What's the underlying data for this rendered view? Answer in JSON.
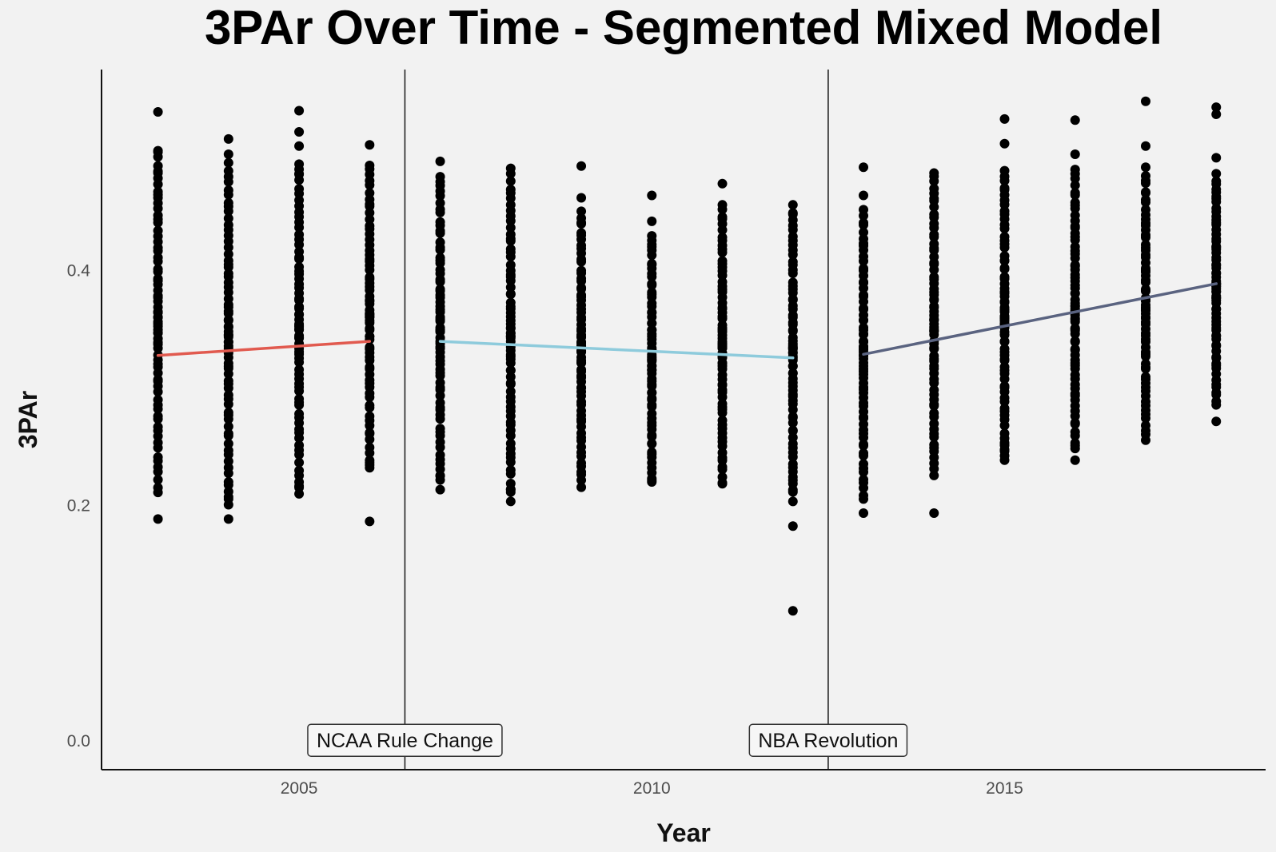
{
  "chart_data": {
    "type": "scatter",
    "title": "3PAr Over Time - Segmented Mixed Model",
    "xlabel": "Year",
    "ylabel": "3PAr",
    "xlim": [
      2002.2,
      2018.7
    ],
    "ylim": [
      -0.025,
      0.57
    ],
    "x_ticks": [
      2005,
      2010,
      2015
    ],
    "x_tick_labels": [
      "2005",
      "2010",
      "2015"
    ],
    "y_ticks": [
      0.0,
      0.2,
      0.4
    ],
    "y_tick_labels": [
      "0.0",
      "0.2",
      "0.4"
    ],
    "grid": false,
    "legend": "none",
    "breakpoints": [
      {
        "x": 2006.5,
        "label": "NCAA Rule Change"
      },
      {
        "x": 2012.5,
        "label": "NBA Revolution"
      }
    ],
    "point_color": "#000000",
    "year_ranges": [
      {
        "year": 2003,
        "min": 0.21,
        "max": 0.5
      },
      {
        "year": 2004,
        "min": 0.2,
        "max": 0.49
      },
      {
        "year": 2005,
        "min": 0.21,
        "max": 0.49
      },
      {
        "year": 2006,
        "min": 0.23,
        "max": 0.49
      },
      {
        "year": 2007,
        "min": 0.22,
        "max": 0.48
      },
      {
        "year": 2008,
        "min": 0.21,
        "max": 0.48
      },
      {
        "year": 2009,
        "min": 0.22,
        "max": 0.45
      },
      {
        "year": 2010,
        "min": 0.22,
        "max": 0.43
      },
      {
        "year": 2011,
        "min": 0.22,
        "max": 0.45
      },
      {
        "year": 2012,
        "min": 0.21,
        "max": 0.45
      },
      {
        "year": 2013,
        "min": 0.21,
        "max": 0.45
      },
      {
        "year": 2014,
        "min": 0.23,
        "max": 0.48
      },
      {
        "year": 2015,
        "min": 0.24,
        "max": 0.48
      },
      {
        "year": 2016,
        "min": 0.25,
        "max": 0.48
      },
      {
        "year": 2017,
        "min": 0.26,
        "max": 0.48
      },
      {
        "year": 2018,
        "min": 0.29,
        "max": 0.48
      }
    ],
    "outliers": [
      {
        "x": 2003,
        "y": 0.188
      },
      {
        "x": 2003,
        "y": 0.534
      },
      {
        "x": 2003,
        "y": 0.501
      },
      {
        "x": 2003,
        "y": 0.482
      },
      {
        "x": 2003,
        "y": 0.461
      },
      {
        "x": 2004,
        "y": 0.188
      },
      {
        "x": 2004,
        "y": 0.205
      },
      {
        "x": 2004,
        "y": 0.511
      },
      {
        "x": 2004,
        "y": 0.498
      },
      {
        "x": 2005,
        "y": 0.535
      },
      {
        "x": 2005,
        "y": 0.517
      },
      {
        "x": 2005,
        "y": 0.505
      },
      {
        "x": 2005,
        "y": 0.481
      },
      {
        "x": 2005,
        "y": 0.216
      },
      {
        "x": 2006,
        "y": 0.186
      },
      {
        "x": 2006,
        "y": 0.506
      },
      {
        "x": 2006,
        "y": 0.236
      },
      {
        "x": 2007,
        "y": 0.213
      },
      {
        "x": 2007,
        "y": 0.225
      },
      {
        "x": 2007,
        "y": 0.492
      },
      {
        "x": 2008,
        "y": 0.203
      },
      {
        "x": 2008,
        "y": 0.213
      },
      {
        "x": 2008,
        "y": 0.486
      },
      {
        "x": 2009,
        "y": 0.215
      },
      {
        "x": 2009,
        "y": 0.488
      },
      {
        "x": 2009,
        "y": 0.461
      },
      {
        "x": 2010,
        "y": 0.221
      },
      {
        "x": 2010,
        "y": 0.463
      },
      {
        "x": 2010,
        "y": 0.441
      },
      {
        "x": 2011,
        "y": 0.218
      },
      {
        "x": 2011,
        "y": 0.473
      },
      {
        "x": 2011,
        "y": 0.455
      },
      {
        "x": 2012,
        "y": 0.11
      },
      {
        "x": 2012,
        "y": 0.182
      },
      {
        "x": 2012,
        "y": 0.203
      },
      {
        "x": 2012,
        "y": 0.221
      },
      {
        "x": 2012,
        "y": 0.455
      },
      {
        "x": 2013,
        "y": 0.193
      },
      {
        "x": 2013,
        "y": 0.205
      },
      {
        "x": 2013,
        "y": 0.487
      },
      {
        "x": 2013,
        "y": 0.463
      },
      {
        "x": 2014,
        "y": 0.193
      },
      {
        "x": 2014,
        "y": 0.225
      },
      {
        "x": 2014,
        "y": 0.482
      },
      {
        "x": 2015,
        "y": 0.528
      },
      {
        "x": 2015,
        "y": 0.507
      },
      {
        "x": 2015,
        "y": 0.484
      },
      {
        "x": 2015,
        "y": 0.238
      },
      {
        "x": 2015,
        "y": 0.247
      },
      {
        "x": 2016,
        "y": 0.527
      },
      {
        "x": 2016,
        "y": 0.498
      },
      {
        "x": 2016,
        "y": 0.485
      },
      {
        "x": 2016,
        "y": 0.238
      },
      {
        "x": 2016,
        "y": 0.248
      },
      {
        "x": 2017,
        "y": 0.543
      },
      {
        "x": 2017,
        "y": 0.505
      },
      {
        "x": 2017,
        "y": 0.487
      },
      {
        "x": 2017,
        "y": 0.255
      },
      {
        "x": 2018,
        "y": 0.538
      },
      {
        "x": 2018,
        "y": 0.532
      },
      {
        "x": 2018,
        "y": 0.495
      },
      {
        "x": 2018,
        "y": 0.271
      },
      {
        "x": 2018,
        "y": 0.285
      }
    ],
    "segments": [
      {
        "x": [
          2003,
          2006
        ],
        "y": [
          0.327,
          0.339
        ],
        "color": "#e15a4f"
      },
      {
        "x": [
          2007,
          2012
        ],
        "y": [
          0.339,
          0.325
        ],
        "color": "#8ecbdc"
      },
      {
        "x": [
          2013,
          2018
        ],
        "y": [
          0.328,
          0.388
        ],
        "color": "#5a6380"
      }
    ]
  }
}
